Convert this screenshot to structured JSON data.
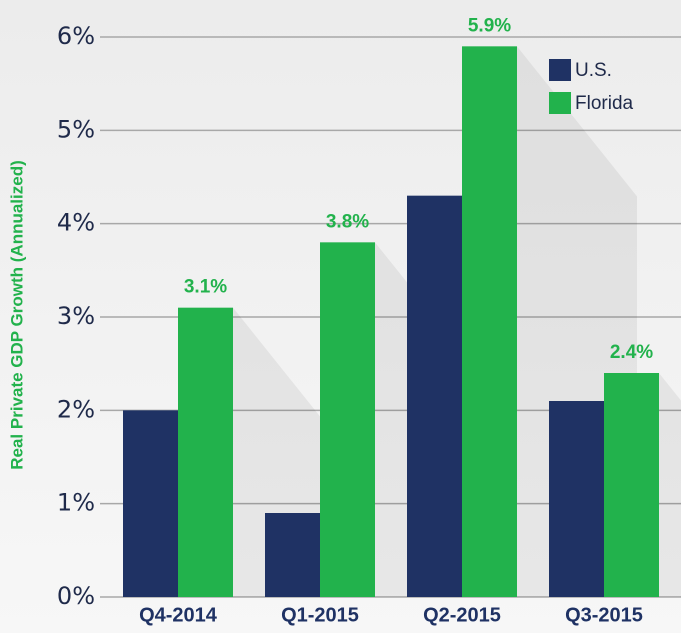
{
  "chart_data": {
    "type": "bar",
    "y_label": "Real Private GDP Growth (Annualized)",
    "categories": [
      "Q4-2014",
      "Q1-2015",
      "Q2-2015",
      "Q3-2015"
    ],
    "series": [
      {
        "name": "U.S.",
        "color": "#1f3264",
        "values": [
          2.0,
          0.9,
          4.3,
          2.1
        ]
      },
      {
        "name": "Florida",
        "color": "#22b24c",
        "values": [
          3.1,
          3.8,
          5.9,
          2.4
        ],
        "value_labels": [
          "3.1%",
          "3.8%",
          "5.9%",
          "2.4%"
        ]
      }
    ],
    "ylim": [
      0,
      6
    ],
    "yticks": [
      {
        "value": 0,
        "label": "0%"
      },
      {
        "value": 1,
        "label": "1%"
      },
      {
        "value": 2,
        "label": "2%"
      },
      {
        "value": 3,
        "label": "3%"
      },
      {
        "value": 4,
        "label": "4%"
      },
      {
        "value": 5,
        "label": "5%"
      },
      {
        "value": 6,
        "label": "6%"
      }
    ],
    "grid": true,
    "legend": "upper right"
  }
}
